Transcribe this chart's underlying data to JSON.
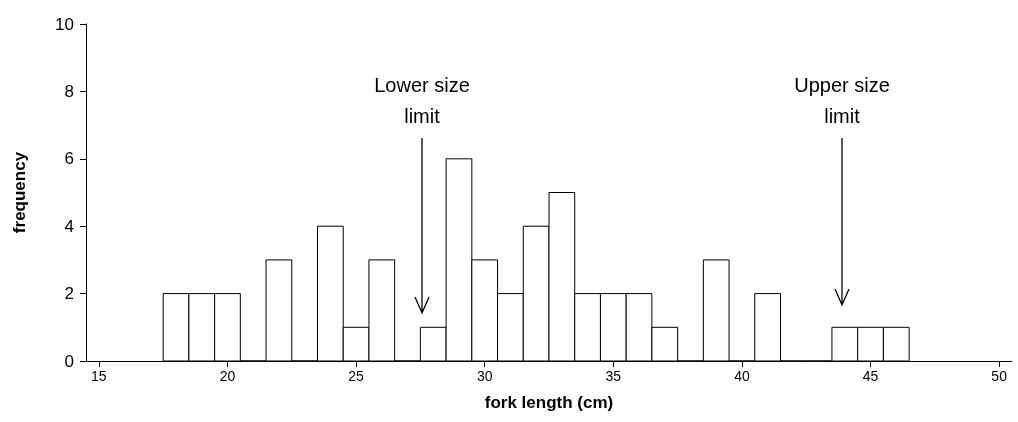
{
  "chart_data": {
    "type": "histogram",
    "xlabel": "fork length (cm)",
    "ylabel": "frequency",
    "bins": [
      17.5,
      18.5,
      19.5,
      20.5,
      21.5,
      22.5,
      23.5,
      24.5,
      25.5,
      26.5,
      27.5,
      28.5,
      29.5,
      30.5,
      31.5,
      32.5,
      33.5,
      34.5,
      35.5,
      36.5,
      37.5,
      38.5,
      39.5,
      40.5,
      41.5,
      42.5,
      43.5,
      44.5,
      45.5,
      46.5
    ],
    "values": [
      2,
      2,
      2,
      0,
      3,
      0,
      4,
      1,
      3,
      0,
      1,
      6,
      3,
      2,
      4,
      5,
      2,
      2,
      2,
      1,
      0,
      3,
      0,
      2,
      0,
      0,
      1,
      1,
      1
    ],
    "color": "#ffffff",
    "xlim": [
      14.5,
      50.5
    ],
    "xticks": [
      15,
      20,
      25,
      30,
      35,
      40,
      45,
      50
    ],
    "ylim": [
      0,
      10
    ],
    "yticks": [
      0,
      2,
      4,
      6,
      8,
      10
    ],
    "grid": false,
    "annotations": [
      "Lower size\nlimit",
      "Upper size\nlimit"
    ]
  }
}
